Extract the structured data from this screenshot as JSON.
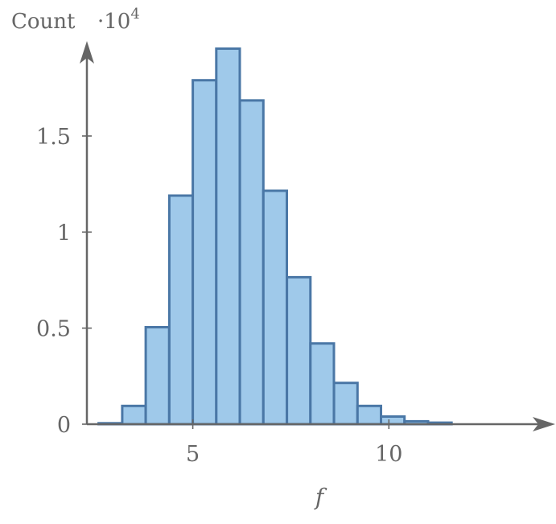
{
  "chart_data": {
    "type": "bar",
    "title": "",
    "xlabel": "f",
    "ylabel": "Count",
    "y_multiplier": "·10",
    "y_multiplier_exponent": "4",
    "xlim": [
      2.3,
      14.2
    ],
    "ylim": [
      0,
      1.99
    ],
    "x_ticks": [
      5,
      10
    ],
    "x_tick_labels": [
      "5",
      "10"
    ],
    "y_ticks": [
      0,
      0.5,
      1,
      1.5
    ],
    "y_tick_labels": [
      "0",
      "0.5",
      "1",
      "1.5"
    ],
    "bin_edges": [
      2.6,
      3.2,
      3.8,
      4.4,
      5.0,
      5.6,
      6.2,
      6.8,
      7.4,
      8.0,
      8.6,
      9.2,
      9.8,
      10.4,
      11.0,
      11.6
    ],
    "values": [
      0.005,
      0.095,
      0.505,
      1.19,
      1.79,
      1.955,
      1.685,
      1.215,
      0.765,
      0.42,
      0.215,
      0.095,
      0.04,
      0.015,
      0.008
    ],
    "grid": false,
    "legend": "none",
    "colors": {
      "bar_fill": "#9fc9ea",
      "bar_stroke": "#4a77a6",
      "axis": "#666666"
    }
  }
}
